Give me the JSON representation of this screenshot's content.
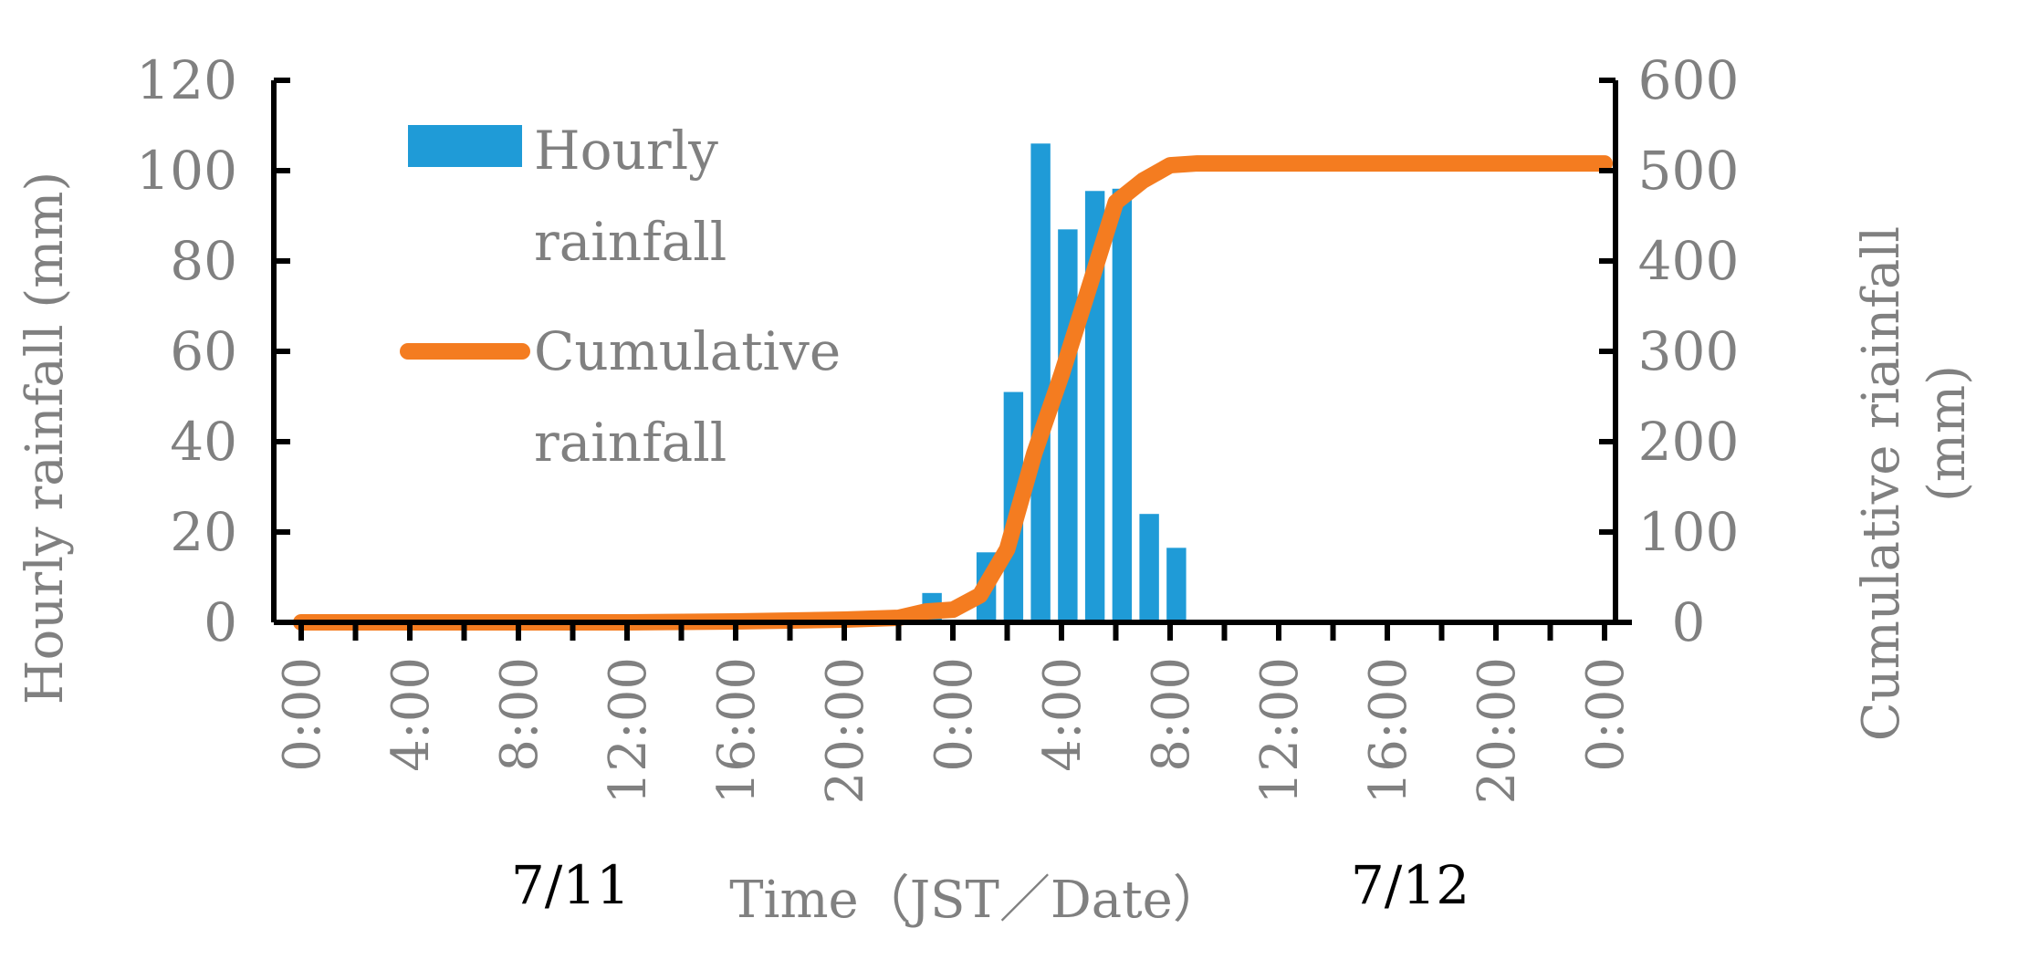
{
  "chart_data": {
    "type": "bar",
    "x_tick_labels": [
      "0:00",
      "4:00",
      "8:00",
      "12:00",
      "16:00",
      "20:00",
      "0:00",
      "4:00",
      "8:00",
      "12:00",
      "16:00",
      "20:00",
      "0:00"
    ],
    "date_labels": [
      "7/11",
      "7/12"
    ],
    "xlabel": "Time（JST／Date）",
    "ylabel_left": "Hourly rainfall (mm)",
    "ylabel_right_line1": "Cumulative riainfall",
    "ylabel_right_line2": "(mm)",
    "ylim_left": [
      0,
      120
    ],
    "ylim_right": [
      0,
      600
    ],
    "yticks_left": [
      "0",
      "20",
      "40",
      "60",
      "80",
      "100",
      "120"
    ],
    "yticks_right": [
      "0",
      "100",
      "200",
      "300",
      "400",
      "500",
      "600"
    ],
    "legend_position": "top-left",
    "hours_span": 48,
    "series": [
      {
        "name": "Hourly rainfall",
        "legend_line1": "Hourly",
        "legend_line2": "rainfall",
        "type": "bar",
        "axis": "left",
        "color": "#1f9bd7",
        "points": [
          {
            "hour": 22,
            "value": 0.5
          },
          {
            "hour": 23,
            "value": 6.5
          },
          {
            "hour": 24,
            "value": 0.5
          },
          {
            "hour": 25,
            "value": 15.5
          },
          {
            "hour": 26,
            "value": 51
          },
          {
            "hour": 27,
            "value": 106
          },
          {
            "hour": 28,
            "value": 87
          },
          {
            "hour": 29,
            "value": 95.5
          },
          {
            "hour": 30,
            "value": 96
          },
          {
            "hour": 31,
            "value": 24
          },
          {
            "hour": 32,
            "value": 16.5
          }
        ]
      },
      {
        "name": "Cumulative rainfall",
        "legend_line1": "Cumulative",
        "legend_line2": "rainfall",
        "type": "line",
        "axis": "right",
        "color": "#f47c20",
        "points": [
          {
            "hour": 0,
            "value": 0
          },
          {
            "hour": 12,
            "value": 0
          },
          {
            "hour": 16,
            "value": 1
          },
          {
            "hour": 20,
            "value": 3
          },
          {
            "hour": 22,
            "value": 5
          },
          {
            "hour": 23,
            "value": 12
          },
          {
            "hour": 24,
            "value": 14
          },
          {
            "hour": 25,
            "value": 30
          },
          {
            "hour": 26,
            "value": 81
          },
          {
            "hour": 27,
            "value": 187
          },
          {
            "hour": 28,
            "value": 274
          },
          {
            "hour": 29,
            "value": 369
          },
          {
            "hour": 30,
            "value": 465
          },
          {
            "hour": 31,
            "value": 489
          },
          {
            "hour": 32,
            "value": 506
          },
          {
            "hour": 33,
            "value": 508
          },
          {
            "hour": 48,
            "value": 508
          }
        ]
      }
    ]
  }
}
